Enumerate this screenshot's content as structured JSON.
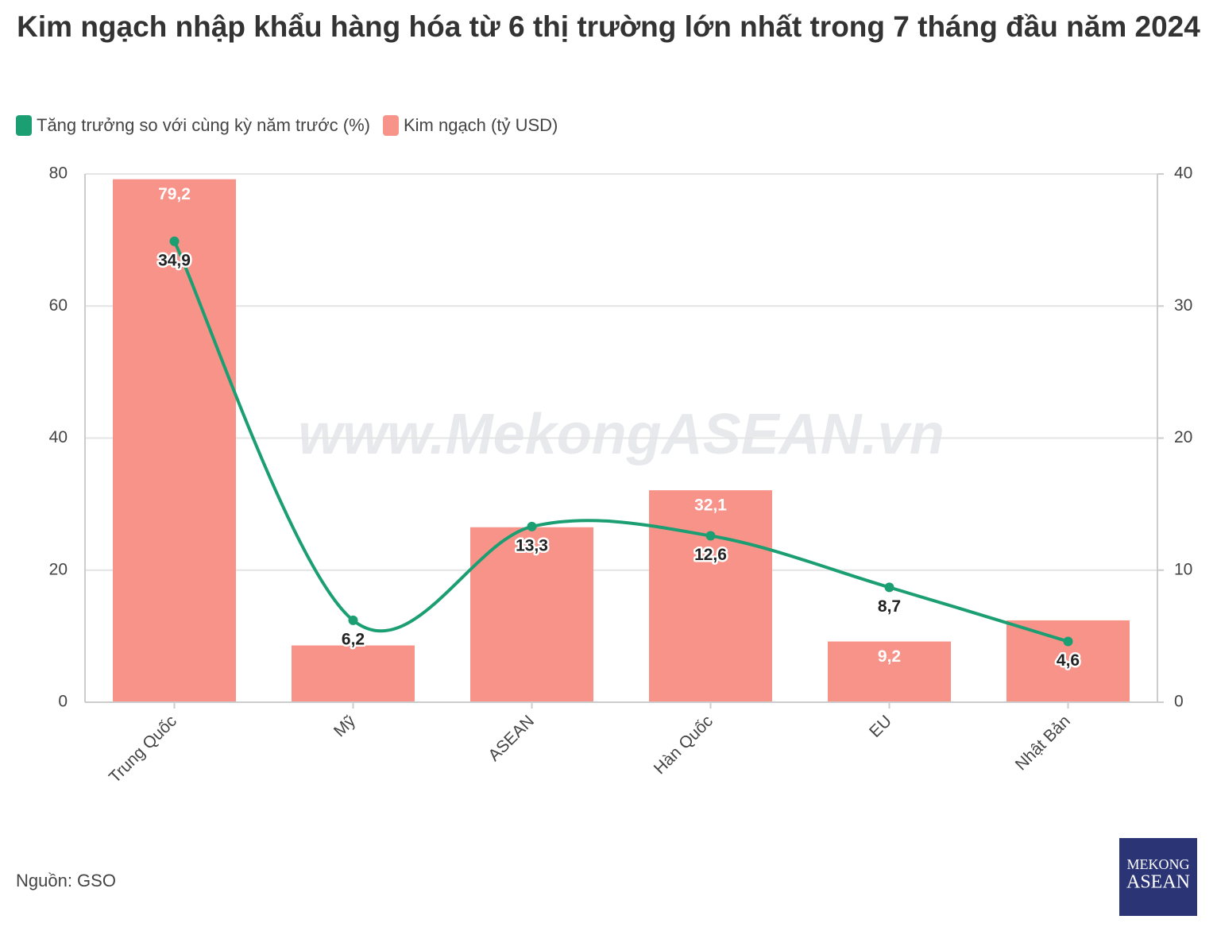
{
  "chart_data": {
    "type": "bar-line",
    "title": "Kim ngạch nhập khẩu hàng hóa từ 6 thị trường lớn nhất trong 7 tháng đầu năm 2024",
    "categories": [
      "Trung Quốc",
      "Mỹ",
      "ASEAN",
      "Hàn Quốc",
      "EU",
      "Nhật Bản"
    ],
    "series": [
      {
        "name": "Tăng trưởng so với cùng kỳ năm trước (%)",
        "type": "line",
        "axis": "y2",
        "color": "#1a9e72",
        "values": [
          34.9,
          6.2,
          13.3,
          12.6,
          8.7,
          4.6
        ],
        "value_labels": [
          "34,9",
          "6,2",
          "13,3",
          "12,6",
          "8,7",
          "4,6"
        ]
      },
      {
        "name": "Kim ngạch (tỷ USD)",
        "type": "bar",
        "axis": "y",
        "color": "#f8938a",
        "values": [
          79.2,
          8.6,
          26.5,
          32.1,
          9.2,
          12.4
        ],
        "value_labels": [
          "79,2",
          null,
          null,
          "32,1",
          "9,2",
          null
        ]
      }
    ],
    "ylim": [
      0,
      80
    ],
    "yticks": [
      0,
      20,
      40,
      60,
      80
    ],
    "y2lim": [
      0,
      40
    ],
    "y2ticks": [
      0,
      10,
      20,
      30,
      40
    ],
    "grid": true,
    "legend": "top-left",
    "source": "Nguồn: GSO",
    "watermark": "www.MekongASEAN.vn",
    "logo": {
      "line1": "MEKONG",
      "line2": "ASEAN"
    }
  }
}
